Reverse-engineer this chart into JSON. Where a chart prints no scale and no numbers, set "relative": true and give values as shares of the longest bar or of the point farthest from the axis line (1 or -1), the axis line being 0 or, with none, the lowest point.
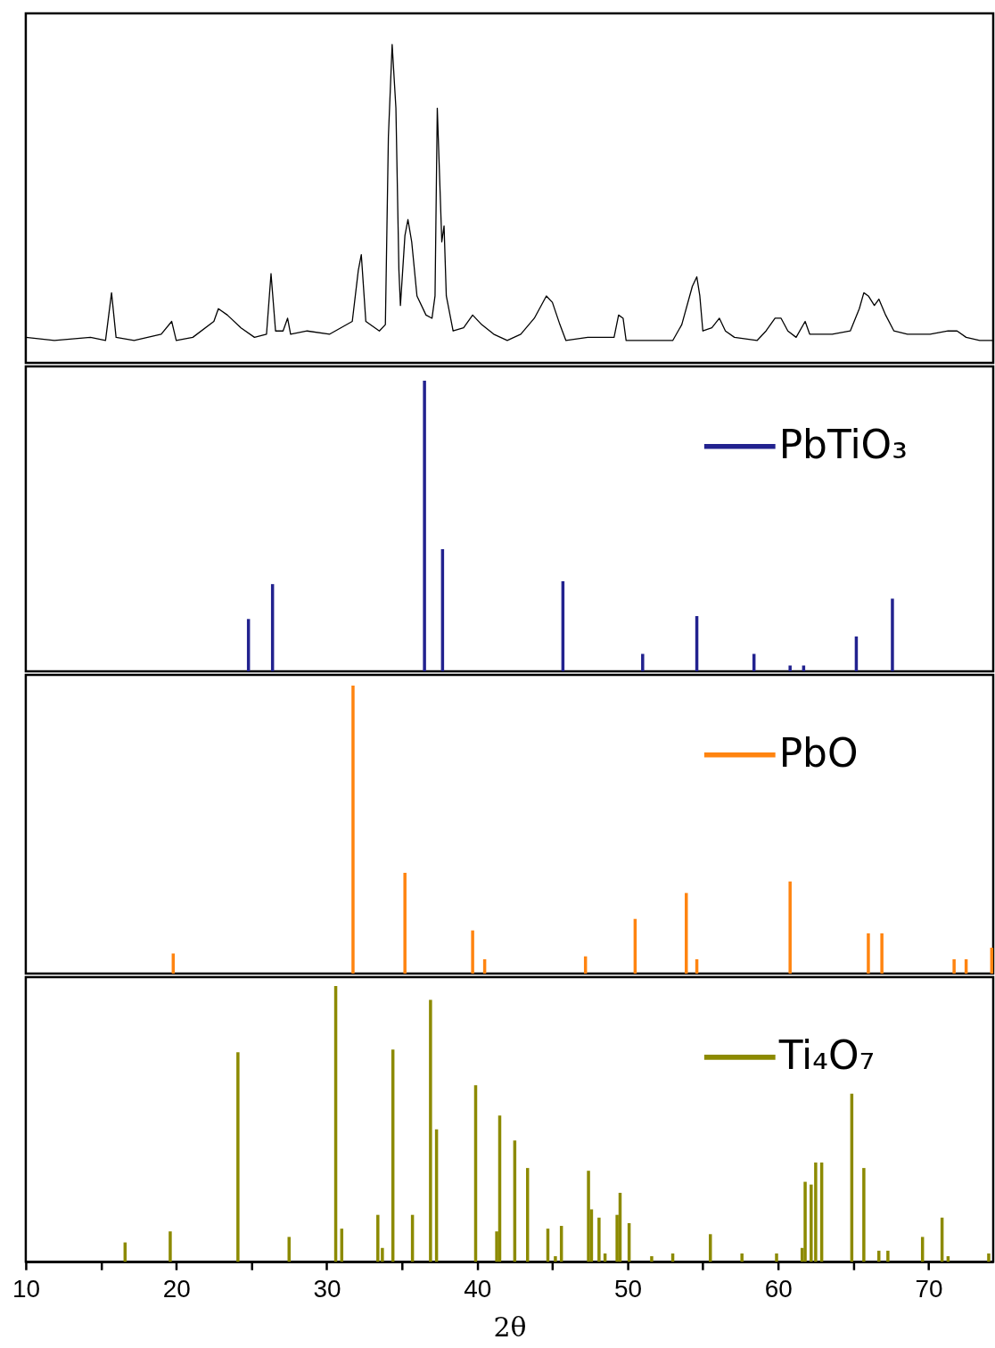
{
  "chart_data": [
    {
      "type": "line",
      "relative": true,
      "xlim": [
        10,
        74.3
      ],
      "tick_labels": false,
      "series": [
        {
          "color": "#000000",
          "x": [
            10.0,
            11.9,
            14.3,
            15.3,
            15.7,
            16.0,
            17.2,
            19.0,
            19.7,
            20.0,
            21.1,
            22.5,
            22.8,
            23.4,
            24.3,
            25.2,
            26.0,
            26.3,
            26.6,
            27.1,
            27.4,
            27.6,
            28.7,
            30.2,
            31.7,
            32.1,
            32.3,
            32.6,
            33.5,
            33.9,
            34.1,
            34.35,
            34.6,
            34.8,
            34.9,
            35.2,
            35.4,
            35.65,
            36.0,
            36.6,
            37.0,
            37.2,
            37.35,
            37.55,
            37.65,
            37.8,
            37.95,
            38.4,
            39.1,
            39.7,
            40.3,
            41.1,
            42.0,
            42.9,
            43.8,
            44.6,
            45.0,
            45.5,
            45.9,
            47.35,
            49.1,
            49.4,
            49.7,
            49.9,
            51.5,
            53.0,
            53.6,
            54.3,
            54.6,
            54.8,
            55.0,
            55.6,
            56.1,
            56.5,
            57.1,
            58.6,
            59.2,
            59.8,
            60.2,
            60.65,
            61.2,
            61.8,
            62.1,
            63.6,
            64.8,
            65.4,
            65.7,
            66.0,
            66.4,
            66.7,
            67.15,
            67.7,
            68.6,
            70.1,
            71.3,
            71.9,
            72.5,
            73.4,
            74.3
          ],
          "values": [
            0.08,
            0.07,
            0.08,
            0.07,
            0.22,
            0.08,
            0.07,
            0.09,
            0.13,
            0.07,
            0.08,
            0.13,
            0.17,
            0.15,
            0.11,
            0.08,
            0.09,
            0.28,
            0.1,
            0.1,
            0.14,
            0.09,
            0.1,
            0.09,
            0.13,
            0.29,
            0.34,
            0.13,
            0.1,
            0.12,
            0.71,
            1,
            0.8,
            0.29,
            0.18,
            0.4,
            0.45,
            0.38,
            0.21,
            0.15,
            0.14,
            0.21,
            0.8,
            0.52,
            0.38,
            0.43,
            0.21,
            0.1,
            0.11,
            0.15,
            0.12,
            0.09,
            0.07,
            0.09,
            0.14,
            0.21,
            0.19,
            0.12,
            0.07,
            0.08,
            0.08,
            0.15,
            0.14,
            0.07,
            0.07,
            0.07,
            0.12,
            0.24,
            0.27,
            0.21,
            0.1,
            0.11,
            0.14,
            0.1,
            0.08,
            0.07,
            0.1,
            0.14,
            0.14,
            0.1,
            0.08,
            0.13,
            0.09,
            0.09,
            0.1,
            0.17,
            0.22,
            0.21,
            0.18,
            0.2,
            0.15,
            0.1,
            0.09,
            0.09,
            0.1,
            0.1,
            0.08,
            0.07,
            0.07
          ]
        }
      ]
    },
    {
      "type": "bar",
      "relative": true,
      "legend": "top right",
      "xlim": [
        10,
        74.3
      ],
      "tick_labels": false,
      "series": [
        {
          "name": "PbTiO₃",
          "color": "#22228f",
          "x": [
            24.8,
            26.4,
            36.5,
            37.7,
            45.7,
            51.0,
            54.6,
            58.4,
            60.8,
            61.7,
            65.2,
            67.6
          ],
          "values": [
            0.18,
            0.3,
            1,
            0.42,
            0.31,
            0.06,
            0.19,
            0.06,
            0.02,
            0.02,
            0.12,
            0.25
          ]
        }
      ]
    },
    {
      "type": "bar",
      "relative": true,
      "legend": "top right",
      "xlim": [
        10,
        74.3
      ],
      "tick_labels": false,
      "series": [
        {
          "name": "PbO",
          "color": "#ff8410",
          "x": [
            19.8,
            31.75,
            35.2,
            39.7,
            40.5,
            47.2,
            50.5,
            53.9,
            54.6,
            60.8,
            66.0,
            66.9,
            71.7,
            72.5,
            74.2
          ],
          "values": [
            0.07,
            1,
            0.35,
            0.15,
            0.05,
            0.06,
            0.19,
            0.28,
            0.05,
            0.32,
            0.14,
            0.14,
            0.05,
            0.05,
            0.09
          ]
        }
      ]
    },
    {
      "type": "bar",
      "relative": true,
      "legend": "top right",
      "xlim": [
        10,
        74.3
      ],
      "xticks": [
        10,
        {
          "value": 15,
          "label": null
        },
        20,
        {
          "value": 25,
          "label": null
        },
        30,
        {
          "value": 35,
          "label": null
        },
        40,
        {
          "value": 45,
          "label": null
        },
        50,
        {
          "value": 55,
          "label": null
        },
        60,
        {
          "value": 65,
          "label": null
        },
        70
      ],
      "tick_labels": "x",
      "xlabel": "2θ",
      "series": [
        {
          "name": "Ti₄O₇",
          "color": "#8c8a00",
          "x": [
            16.6,
            19.6,
            24.1,
            27.5,
            30.6,
            31.0,
            33.4,
            33.7,
            34.4,
            35.7,
            36.9,
            37.3,
            39.9,
            41.3,
            41.5,
            42.5,
            43.35,
            44.7,
            45.2,
            45.6,
            47.4,
            47.6,
            48.1,
            48.5,
            49.3,
            49.5,
            50.1,
            51.6,
            53.0,
            55.5,
            57.6,
            59.9,
            61.6,
            61.8,
            62.2,
            62.5,
            62.9,
            64.9,
            65.7,
            66.7,
            67.3,
            69.6,
            70.9,
            71.3,
            74.0
          ],
          "values": [
            0.07,
            0.11,
            0.76,
            0.09,
            1,
            0.12,
            0.17,
            0.05,
            0.77,
            0.17,
            0.95,
            0.48,
            0.64,
            0.11,
            0.53,
            0.44,
            0.34,
            0.12,
            0.02,
            0.13,
            0.33,
            0.19,
            0.16,
            0.03,
            0.17,
            0.25,
            0.14,
            0.02,
            0.03,
            0.1,
            0.03,
            0.03,
            0.05,
            0.29,
            0.28,
            0.36,
            0.36,
            0.61,
            0.34,
            0.04,
            0.04,
            0.09,
            0.16,
            0.02,
            0.03
          ]
        }
      ]
    }
  ]
}
